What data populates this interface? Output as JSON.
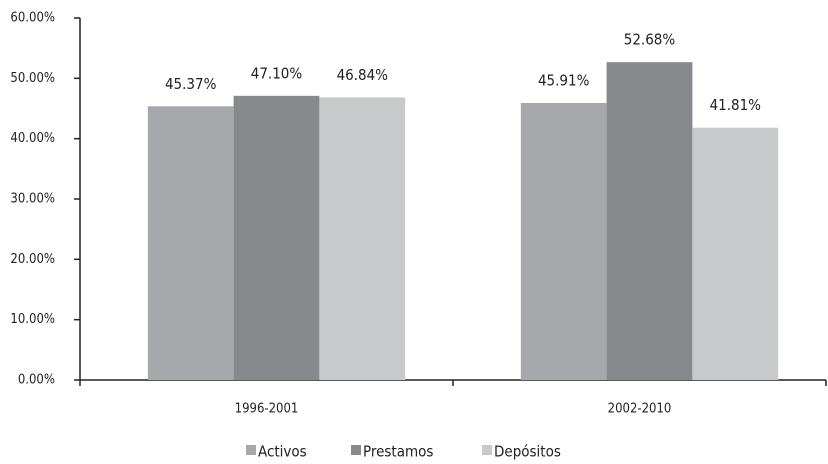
{
  "chart_data": {
    "type": "bar",
    "categories": [
      "1996-2001",
      "2002-2010"
    ],
    "series": [
      {
        "name": "Activos",
        "color": "#a7a8ab",
        "values": [
          45.37,
          45.91
        ],
        "value_labels": [
          "45.37%",
          "45.91%"
        ]
      },
      {
        "name": "Prestamos",
        "color": "#88898c",
        "values": [
          47.1,
          52.68
        ],
        "value_labels": [
          "47.10%",
          "52.68%"
        ]
      },
      {
        "name": "Depósitos",
        "color": "#c8c9cb",
        "values": [
          46.84,
          41.81
        ],
        "value_labels": [
          "46.84%",
          "41.81%"
        ]
      }
    ],
    "ylim": [
      0,
      60
    ],
    "yticks": [
      {
        "value": 0,
        "label": "0.00%"
      },
      {
        "value": 10,
        "label": "10.00%"
      },
      {
        "value": 20,
        "label": "20.00%"
      },
      {
        "value": 30,
        "label": "30.00%"
      },
      {
        "value": 40,
        "label": "40.00%"
      },
      {
        "value": 50,
        "label": "50.00%"
      },
      {
        "value": 60,
        "label": "60.00%"
      }
    ],
    "grid": false,
    "legend": "bottom"
  }
}
